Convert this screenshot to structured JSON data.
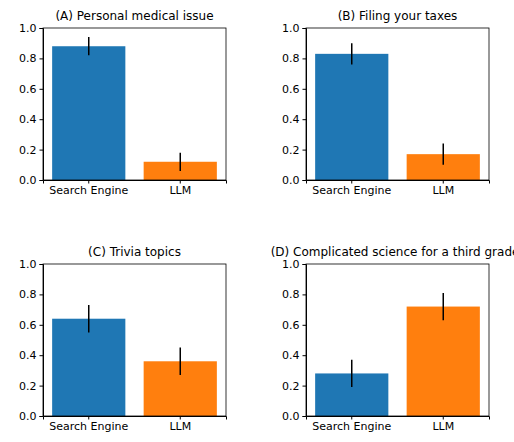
{
  "chart_data": [
    {
      "type": "bar",
      "title": "(A) Personal medical issue",
      "categories": [
        "Search Engine",
        "LLM"
      ],
      "values": [
        0.88,
        0.12
      ],
      "errors": [
        0.06,
        0.06
      ],
      "colors": [
        "#1f77b4",
        "#ff7f0e"
      ],
      "ylim": [
        0,
        1
      ],
      "yticks": [
        {
          "value": 0,
          "label": "0.0"
        },
        {
          "value": 0.2,
          "label": "0.2"
        },
        {
          "value": 0.4,
          "label": "0.4"
        },
        {
          "value": 0.6,
          "label": "0.6"
        },
        {
          "value": 0.8,
          "label": "0.8"
        },
        {
          "value": 1,
          "label": "1.0"
        }
      ]
    },
    {
      "type": "bar",
      "title": "(B) Filing your taxes",
      "categories": [
        "Search Engine",
        "LLM"
      ],
      "values": [
        0.83,
        0.17
      ],
      "errors": [
        0.07,
        0.07
      ],
      "colors": [
        "#1f77b4",
        "#ff7f0e"
      ],
      "ylim": [
        0,
        1
      ],
      "yticks": [
        {
          "value": 0,
          "label": "0.0"
        },
        {
          "value": 0.2,
          "label": "0.2"
        },
        {
          "value": 0.4,
          "label": "0.4"
        },
        {
          "value": 0.6,
          "label": "0.6"
        },
        {
          "value": 0.8,
          "label": "0.8"
        },
        {
          "value": 1,
          "label": "1.0"
        }
      ]
    },
    {
      "type": "bar",
      "title": "(C) Trivia topics",
      "categories": [
        "Search Engine",
        "LLM"
      ],
      "values": [
        0.64,
        0.36
      ],
      "errors": [
        0.09,
        0.09
      ],
      "colors": [
        "#1f77b4",
        "#ff7f0e"
      ],
      "ylim": [
        0,
        1
      ],
      "yticks": [
        {
          "value": 0,
          "label": "0.0"
        },
        {
          "value": 0.2,
          "label": "0.2"
        },
        {
          "value": 0.4,
          "label": "0.4"
        },
        {
          "value": 0.6,
          "label": "0.6"
        },
        {
          "value": 0.8,
          "label": "0.8"
        },
        {
          "value": 1,
          "label": "1.0"
        }
      ]
    },
    {
      "type": "bar",
      "title": "(D) Complicated science for a third grader",
      "categories": [
        "Search Engine",
        "LLM"
      ],
      "values": [
        0.28,
        0.72
      ],
      "errors": [
        0.09,
        0.09
      ],
      "colors": [
        "#1f77b4",
        "#ff7f0e"
      ],
      "ylim": [
        0,
        1
      ],
      "yticks": [
        {
          "value": 0,
          "label": "0.0"
        },
        {
          "value": 0.2,
          "label": "0.2"
        },
        {
          "value": 0.4,
          "label": "0.4"
        },
        {
          "value": 0.6,
          "label": "0.6"
        },
        {
          "value": 0.8,
          "label": "0.8"
        },
        {
          "value": 1,
          "label": "1.0"
        }
      ]
    }
  ]
}
